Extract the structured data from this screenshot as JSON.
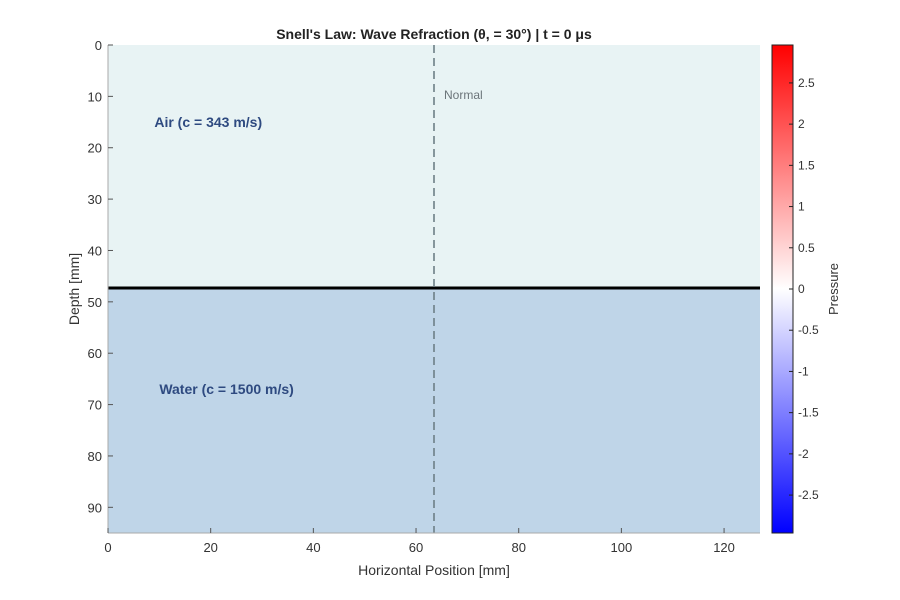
{
  "chart_data": {
    "type": "heatmap",
    "title": "Snell's Law: Wave Refraction (θ, = 30°) | t = 0 μs",
    "xlabel": "Horizontal Position [mm]",
    "ylabel": "Depth [mm]",
    "xlim": [
      0,
      127
    ],
    "ylim": [
      95,
      0
    ],
    "xticks": [
      0,
      20,
      40,
      60,
      80,
      100,
      120
    ],
    "yticks": [
      0,
      10,
      20,
      30,
      40,
      50,
      60,
      70,
      80,
      90
    ],
    "interface_depth": 47.3,
    "normal_x": 63.5,
    "normal_label": "Normal",
    "regions": [
      {
        "label": "Air (c = 343 m/s)",
        "color": "#e8f3f4",
        "label_x": 10,
        "label_y": 15
      },
      {
        "label": "Water (c = 1500 m/s)",
        "color": "#bfd5e8",
        "label_x": 10,
        "label_y": 67
      }
    ],
    "region_label_color": "#2e4a80",
    "pressure_field_max": 0,
    "colorbar": {
      "label": "Pressure",
      "range": [
        -2.96,
        2.96
      ],
      "ticks": [
        -2.5,
        -2,
        -1.5,
        -1,
        -0.5,
        0,
        0.5,
        1,
        1.5,
        2,
        2.5
      ],
      "colormap": [
        "#0000ff",
        "#ffffff",
        "#ff0000"
      ]
    }
  }
}
